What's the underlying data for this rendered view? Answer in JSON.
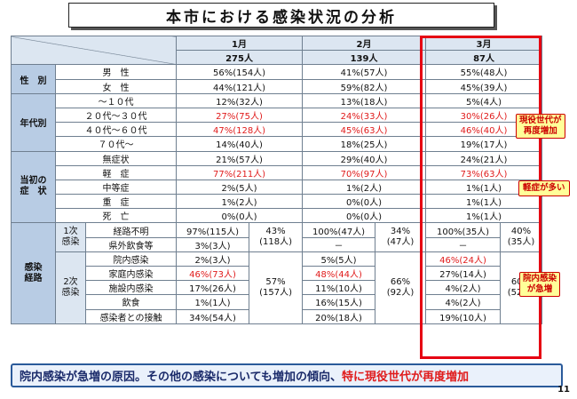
{
  "title": "本市における感染状況の分析",
  "months": [
    {
      "label": "1月",
      "total": "275人"
    },
    {
      "label": "2月",
      "total": "139人"
    },
    {
      "label": "3月",
      "total": "87人"
    }
  ],
  "sex": {
    "category": "性　別",
    "rows": [
      {
        "label": "男　性",
        "m1": "56%(154人)",
        "m2": "41%(57人)",
        "m3": "55%(48人)"
      },
      {
        "label": "女　性",
        "m1": "44%(121人)",
        "m2": "59%(82人)",
        "m3": "45%(39人)"
      }
    ]
  },
  "age": {
    "category": "年代別",
    "rows": [
      {
        "label": "～１０代",
        "m1": "12%(32人)",
        "m2": "13%(18人)",
        "m3": "5%(4人)",
        "red": false
      },
      {
        "label": "２０代～３０代",
        "m1": "27%(75人)",
        "m2": "24%(33人)",
        "m3": "30%(26人)",
        "red": true
      },
      {
        "label": "４０代～６０代",
        "m1": "47%(128人)",
        "m2": "45%(63人)",
        "m3": "46%(40人)",
        "red": true
      },
      {
        "label": "７０代～",
        "m1": "14%(40人)",
        "m2": "18%(25人)",
        "m3": "19%(17人)",
        "red": false
      }
    ]
  },
  "symptom": {
    "category": "当初の\n症　状",
    "rows": [
      {
        "label": "無症状",
        "m1": "21%(57人)",
        "m2": "29%(40人)",
        "m3": "24%(21人)",
        "red": false
      },
      {
        "label": "軽　症",
        "m1": "77%(211人)",
        "m2": "70%(97人)",
        "m3": "73%(63人)",
        "red": true
      },
      {
        "label": "中等症",
        "m1": "2%(5人)",
        "m2": "1%(2人)",
        "m3": "1%(1人)",
        "red": false
      },
      {
        "label": "重　症",
        "m1": "1%(2人)",
        "m2": "0%(0人)",
        "m3": "1%(1人)",
        "red": false
      },
      {
        "label": "死　亡",
        "m1": "0%(0人)",
        "m2": "0%(0人)",
        "m3": "1%(1人)",
        "red": false
      }
    ]
  },
  "route": {
    "category": "感染\n経路",
    "primary": {
      "label": "1次\n感染",
      "total": {
        "m1": "43%\n(118人)",
        "m2": "34%\n(47人)",
        "m3": "40%\n(35人)"
      },
      "rows": [
        {
          "label": "経路不明",
          "m1": "97%(115人)",
          "m2": "100%(47人)",
          "m3": "100%(35人)"
        },
        {
          "label": "県外飲食等",
          "m1": "3%(3人)",
          "m2": "－",
          "m3": "－"
        }
      ]
    },
    "secondary": {
      "label": "2次\n感染",
      "total": {
        "m1": "57%\n(157人)",
        "m2": "66%\n(92人)",
        "m3": "60%\n(52人)"
      },
      "rows": [
        {
          "label": "院内感染",
          "m1": "2%(3人)",
          "m2": "5%(5人)",
          "m3": "46%(24人)",
          "r1": false,
          "r2": false,
          "r3": true
        },
        {
          "label": "家庭内感染",
          "m1": "46%(73人)",
          "m2": "48%(44人)",
          "m3": "27%(14人)",
          "r1": true,
          "r2": true,
          "r3": false
        },
        {
          "label": "施設内感染",
          "m1": "17%(26人)",
          "m2": "11%(10人)",
          "m3": "4%(2人)",
          "r1": false,
          "r2": false,
          "r3": false
        },
        {
          "label": "飲食",
          "m1": "1%(1人)",
          "m2": "16%(15人)",
          "m3": "4%(2人)",
          "r1": false,
          "r2": false,
          "r3": false
        },
        {
          "label": "感染者との接触",
          "m1": "34%(54人)",
          "m2": "20%(18人)",
          "m3": "19%(10人)",
          "r1": false,
          "r2": false,
          "r3": false
        }
      ]
    }
  },
  "callouts": {
    "age": "現役世代が\n再度増加",
    "symptom": "軽症が多い",
    "route": "院内感染\nが急増"
  },
  "summary": {
    "text": "院内感染が急増の原因。その他の感染についても増加の傾向、",
    "highlight": "特に現役世代が再度増加"
  },
  "page_number": "11",
  "colors": {
    "highlight_frame": "#e60012",
    "red_text": "#e01b1b",
    "header_bg": "#dce6f1",
    "category_bg": "#b8cce4"
  }
}
